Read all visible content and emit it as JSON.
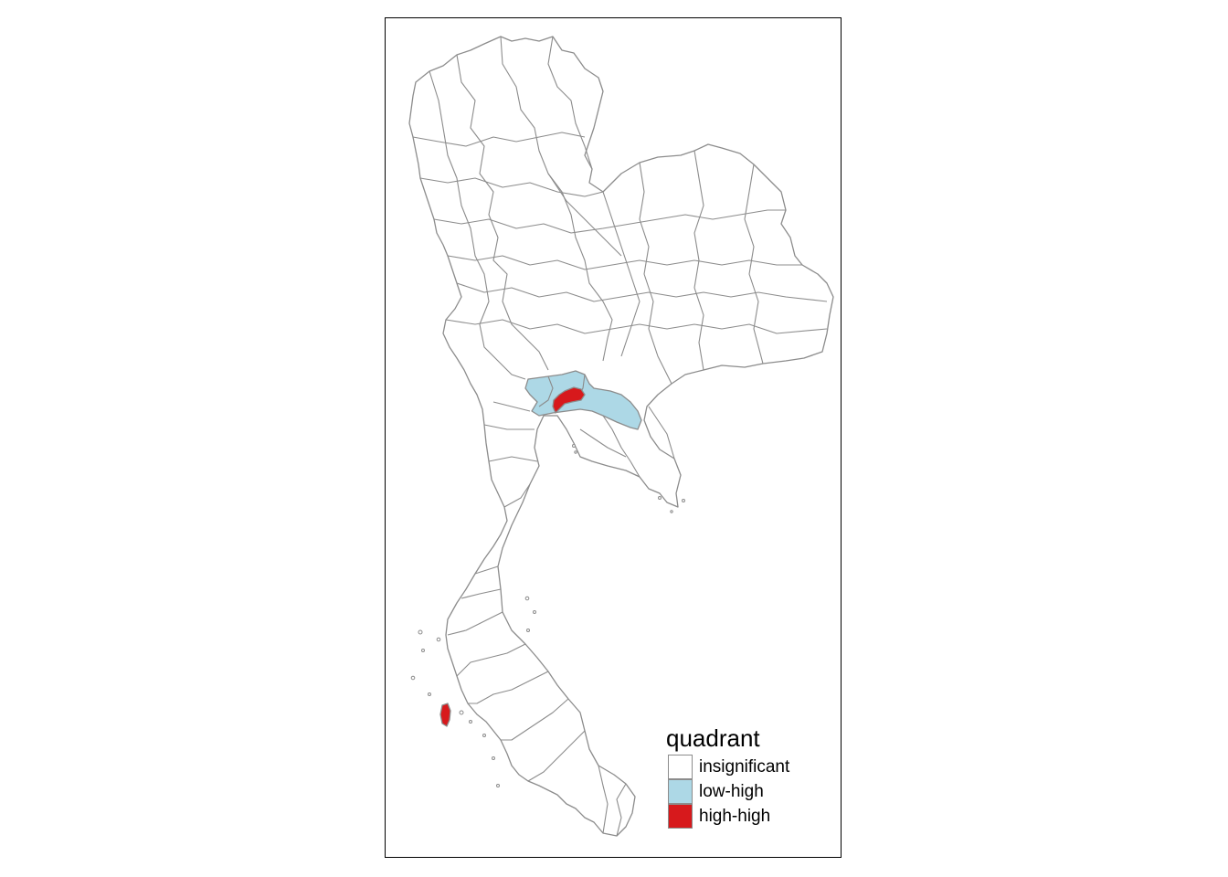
{
  "legend": {
    "title": "quadrant",
    "items": [
      {
        "label": "insignificant",
        "color": "#ffffff"
      },
      {
        "label": "low-high",
        "color": "#add8e6"
      },
      {
        "label": "high-high",
        "color": "#d7191c"
      }
    ]
  },
  "colors": {
    "border": "#8c8c8c",
    "frame": "#000000",
    "background": "#ffffff"
  }
}
